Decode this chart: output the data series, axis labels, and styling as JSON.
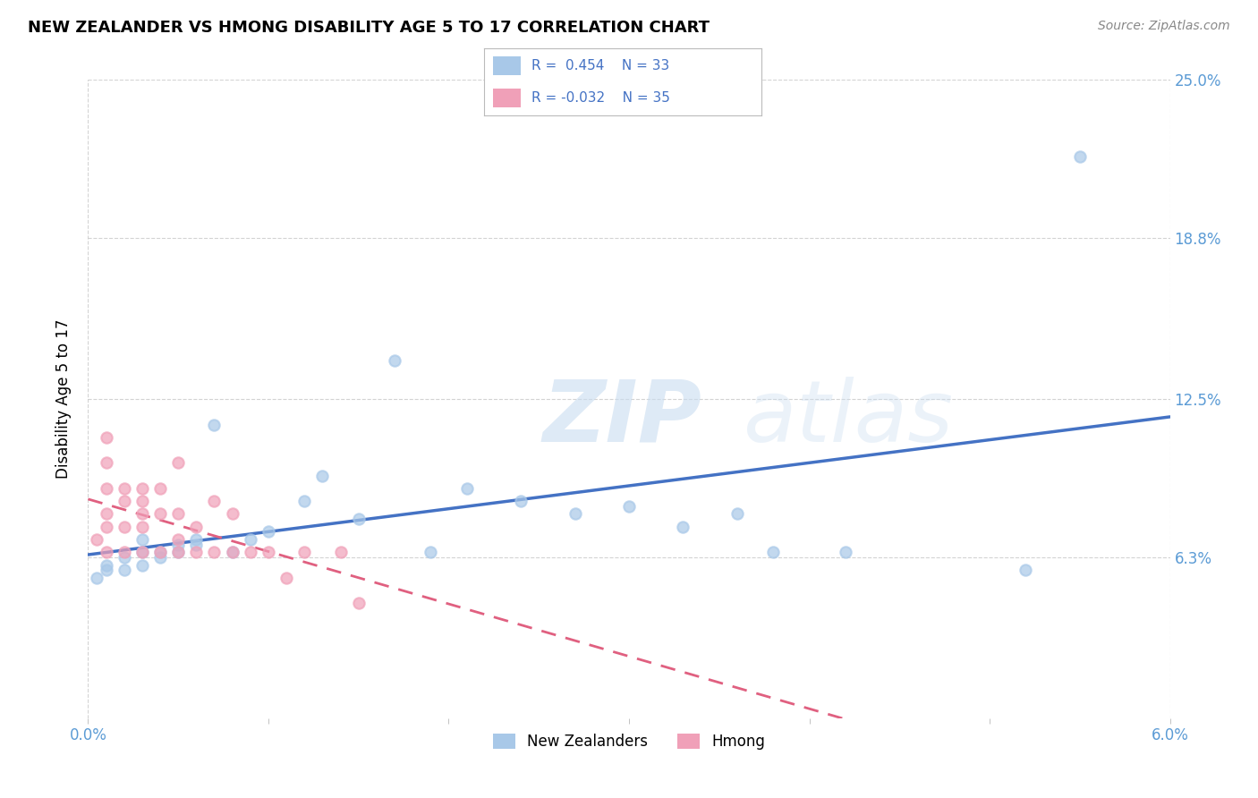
{
  "title": "NEW ZEALANDER VS HMONG DISABILITY AGE 5 TO 17 CORRELATION CHART",
  "source": "Source: ZipAtlas.com",
  "ylabel": "Disability Age 5 to 17",
  "xlim": [
    0.0,
    0.06
  ],
  "ylim": [
    0.0,
    0.25
  ],
  "y_ticks": [
    0.063,
    0.125,
    0.188,
    0.25
  ],
  "y_tick_labels": [
    "6.3%",
    "12.5%",
    "18.8%",
    "25.0%"
  ],
  "r_nz": 0.454,
  "n_nz": 33,
  "r_hmong": -0.032,
  "n_hmong": 35,
  "color_nz": "#A8C8E8",
  "color_hmong": "#F0A0B8",
  "line_color_nz": "#4472C4",
  "line_color_hmong": "#E06080",
  "nz_x": [
    0.0005,
    0.001,
    0.001,
    0.002,
    0.002,
    0.003,
    0.003,
    0.003,
    0.004,
    0.004,
    0.005,
    0.005,
    0.006,
    0.006,
    0.007,
    0.008,
    0.009,
    0.01,
    0.012,
    0.013,
    0.015,
    0.017,
    0.019,
    0.021,
    0.024,
    0.027,
    0.03,
    0.033,
    0.036,
    0.038,
    0.042,
    0.052,
    0.055
  ],
  "nz_y": [
    0.055,
    0.06,
    0.058,
    0.063,
    0.058,
    0.065,
    0.07,
    0.06,
    0.065,
    0.063,
    0.065,
    0.068,
    0.07,
    0.068,
    0.115,
    0.065,
    0.07,
    0.073,
    0.085,
    0.095,
    0.078,
    0.14,
    0.065,
    0.09,
    0.085,
    0.08,
    0.083,
    0.075,
    0.08,
    0.065,
    0.065,
    0.058,
    0.22
  ],
  "hmong_x": [
    0.0005,
    0.001,
    0.001,
    0.001,
    0.001,
    0.001,
    0.001,
    0.002,
    0.002,
    0.002,
    0.002,
    0.003,
    0.003,
    0.003,
    0.003,
    0.003,
    0.004,
    0.004,
    0.004,
    0.005,
    0.005,
    0.005,
    0.005,
    0.006,
    0.006,
    0.007,
    0.007,
    0.008,
    0.008,
    0.009,
    0.01,
    0.011,
    0.012,
    0.014,
    0.015
  ],
  "hmong_y": [
    0.07,
    0.065,
    0.075,
    0.08,
    0.09,
    0.1,
    0.11,
    0.065,
    0.075,
    0.085,
    0.09,
    0.065,
    0.075,
    0.08,
    0.085,
    0.09,
    0.065,
    0.08,
    0.09,
    0.065,
    0.07,
    0.08,
    0.1,
    0.065,
    0.075,
    0.065,
    0.085,
    0.065,
    0.08,
    0.065,
    0.065,
    0.055,
    0.065,
    0.065,
    0.045
  ],
  "background_color": "#FFFFFF",
  "grid_color": "#C8C8C8"
}
